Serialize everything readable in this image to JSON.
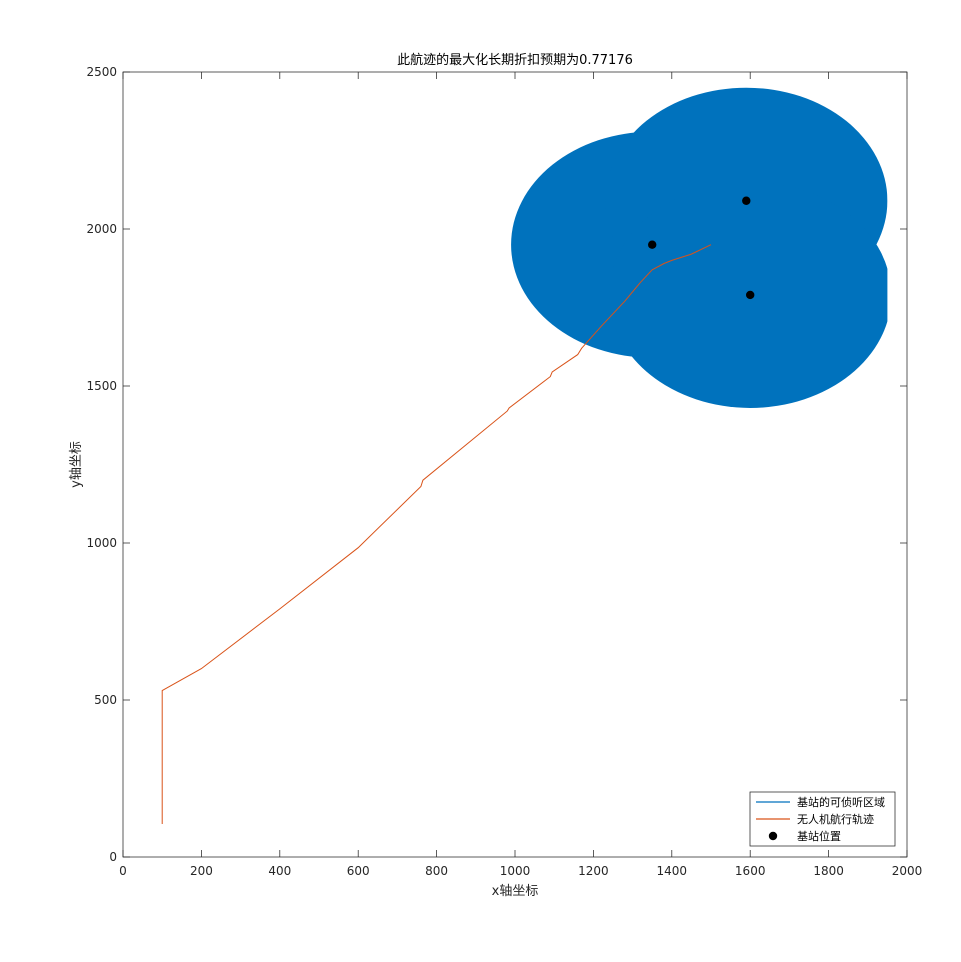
{
  "chart_data": {
    "type": "scatter",
    "title": "此航迹的最大化长期折扣预期为0.77176",
    "xlabel": "x轴坐标",
    "ylabel": "y轴坐标",
    "xlim": [
      0,
      2000
    ],
    "ylim": [
      0,
      2500
    ],
    "x_ticks": [
      0,
      200,
      400,
      600,
      800,
      1000,
      1200,
      1400,
      1600,
      1800,
      2000
    ],
    "y_ticks": [
      0,
      500,
      1000,
      1500,
      2000,
      2500
    ],
    "x_tick_labels": [
      "0",
      "200",
      "400",
      "600",
      "800",
      "1000",
      "1200",
      "1400",
      "1600",
      "1800",
      "2000"
    ],
    "y_tick_labels": [
      "0",
      "500",
      "1000",
      "1500",
      "2000",
      "2500"
    ],
    "grid": false,
    "legend_position": "bottom-right",
    "coverage_color": "#0072BD",
    "trajectory_color": "#D95319",
    "station_color": "#000000",
    "base_stations": [
      {
        "x": 1350,
        "y": 1950,
        "radius": 360
      },
      {
        "x": 1590,
        "y": 2090,
        "radius": 360
      },
      {
        "x": 1600,
        "y": 1790,
        "radius": 360
      }
    ],
    "coverage_clip_x_max": 1950,
    "series": [
      {
        "name": "无人机航行轨迹",
        "type": "line",
        "x": [
          100,
          100,
          200,
          400,
          600,
          760,
          765,
          980,
          985,
          1090,
          1095,
          1160,
          1170,
          1220,
          1280,
          1320,
          1350,
          1380,
          1400,
          1450,
          1500
        ],
        "y": [
          105,
          530,
          600,
          790,
          985,
          1180,
          1200,
          1420,
          1430,
          1530,
          1545,
          1600,
          1620,
          1690,
          1770,
          1830,
          1870,
          1890,
          1900,
          1920,
          1950
        ]
      }
    ],
    "legend": [
      {
        "label": "基站的可侦听区域",
        "marker": "line",
        "color": "#0072BD"
      },
      {
        "label": "无人机航行轨迹",
        "marker": "line",
        "color": "#D95319"
      },
      {
        "label": "基站位置",
        "marker": "dot",
        "color": "#000000"
      }
    ]
  }
}
